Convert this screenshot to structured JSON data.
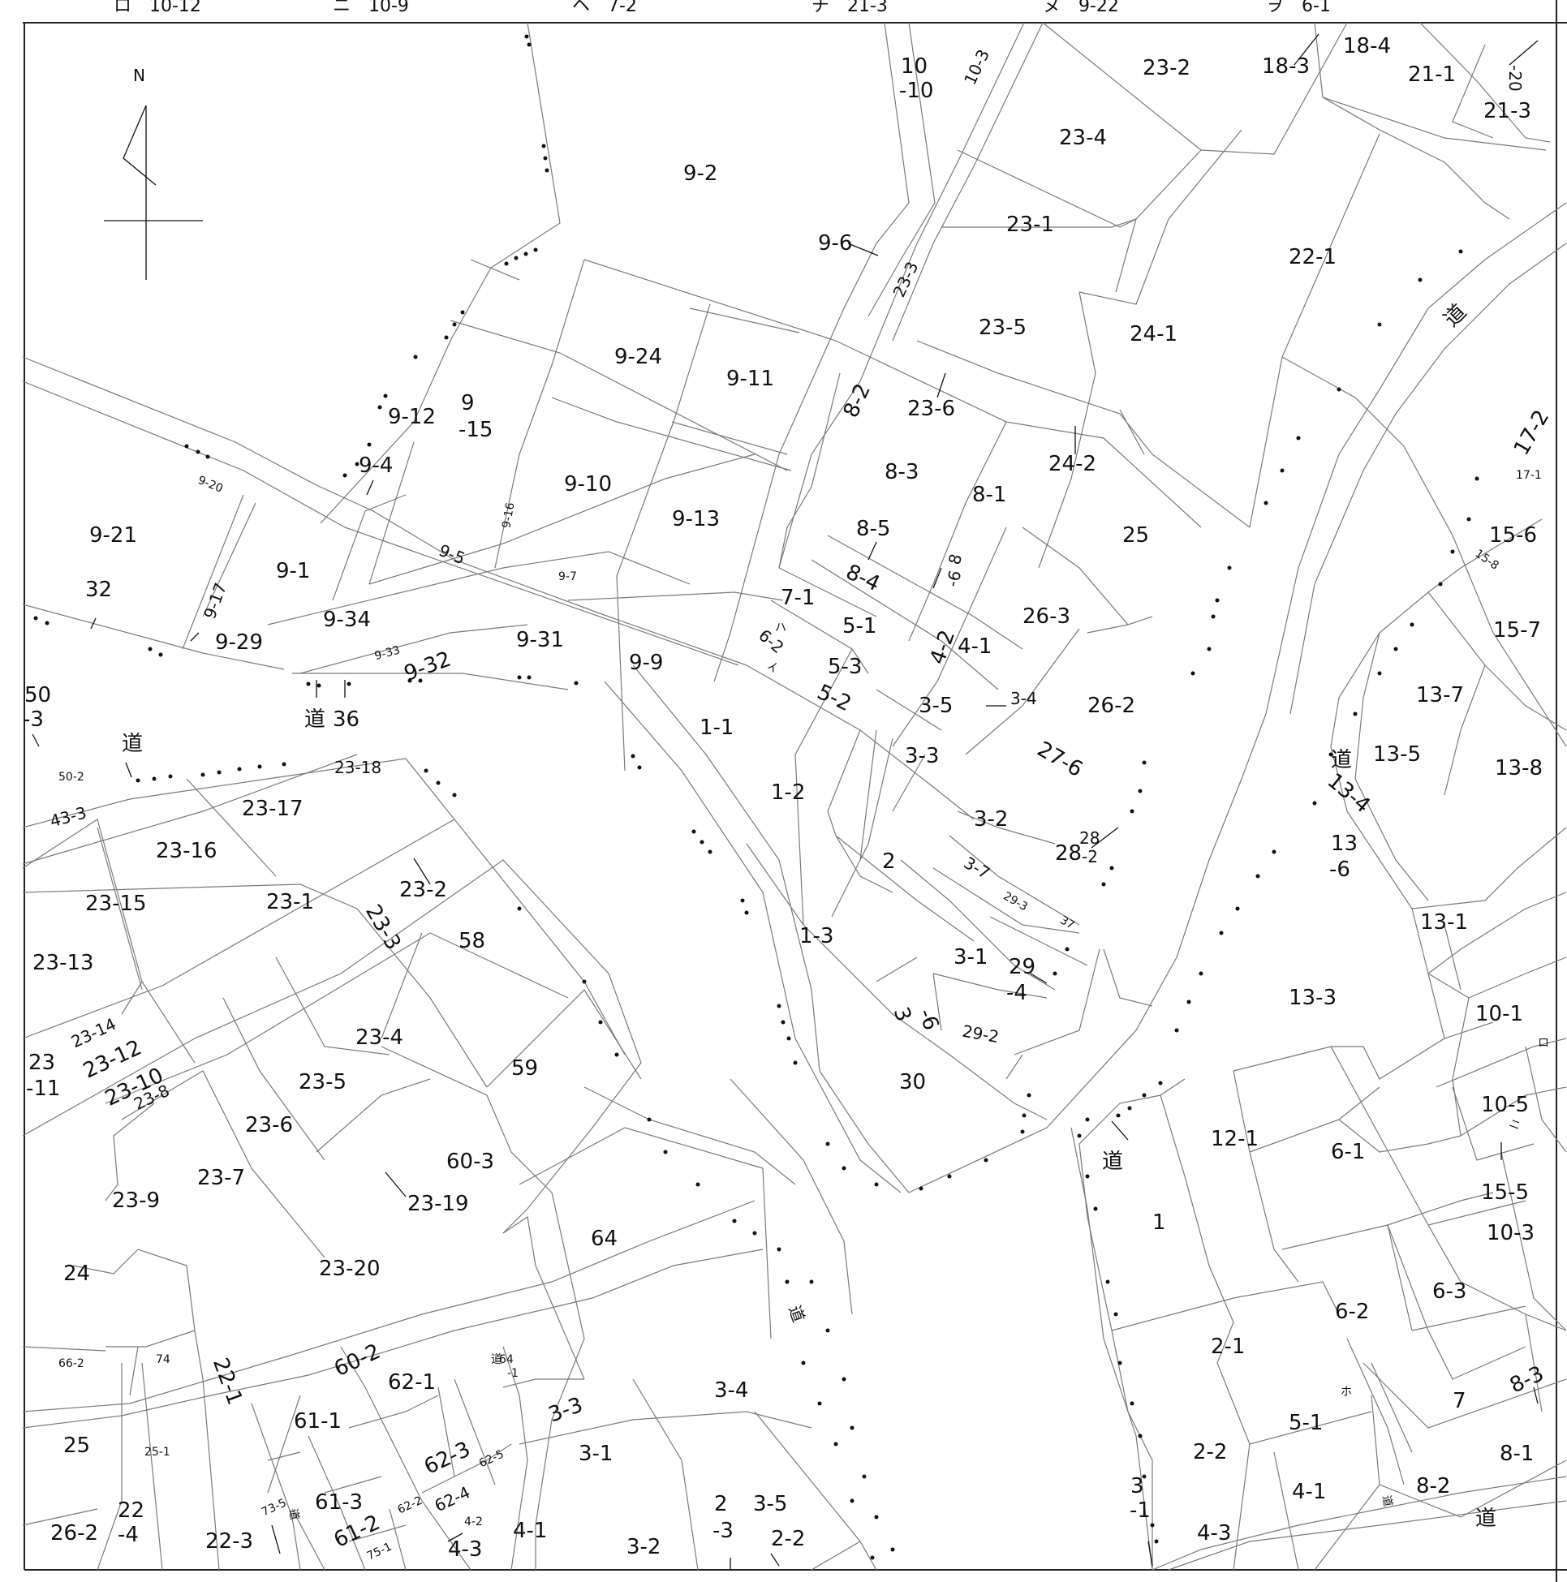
{
  "header": {
    "entries": [
      "ロ　10-12",
      "ニ　10-9",
      "ヘ　7-2",
      "チ　21-3",
      "ヌ　9-22",
      "ヲ　6-1"
    ]
  },
  "compass": {
    "label": "N"
  },
  "parcels": {
    "p9_2": "9-2",
    "p10_10a": "10",
    "p10_10b": "-10",
    "p10_3": "10-3",
    "p23_2n": "23-2",
    "p18_3": "18-3",
    "p18_4": "18-4",
    "p21_1": "21-1",
    "p20": "-20",
    "p21_3": "21-3",
    "p23_4n": "23-4",
    "p23_1n": "23-1",
    "p22_1n": "22-1",
    "p9_6": "9-6",
    "p23_3n": "23-3",
    "p23_5n": "23-5",
    "p24_1": "24-1",
    "p9_24": "9-24",
    "p9_11": "9-11",
    "p8_2": "8-2",
    "p23_6n": "23-6",
    "p9_12": "9-12",
    "p9_15a": "9",
    "p9_15b": "-15",
    "p9_4": "9-4",
    "p9_10": "9-10",
    "p9_16": "9-16",
    "p9_13": "9-13",
    "p8_3": "8-3",
    "p8_1": "8-1",
    "p24_2": "24-2",
    "p25n": "25",
    "p9_20": "9-20",
    "p9_21": "9-21",
    "p9_1": "9-1",
    "p9_5": "9-5",
    "p9_7": "9-7",
    "p8_5": "8-5",
    "p8_6a": "8",
    "p8_6b": "-6",
    "p17_2": "17-2",
    "p17_1": "17-1",
    "p15_6": "15-6",
    "p15_8": "15-8",
    "p32": "32",
    "p9_17": "9-17",
    "p9_34": "9-34",
    "p9_29": "9-29",
    "p8_4": "8-4",
    "p7_1": "7-1",
    "p5_1": "5-1",
    "p4_2": "4-2",
    "p4_1": "4-1",
    "p26_3": "26-3",
    "p15_7": "15-7",
    "p9_33": "9-33",
    "p9_32": "9-32",
    "p9_31": "9-31",
    "p9_9": "9-9",
    "p6_2": "6-2",
    "p5_3": "5-3",
    "p13_7": "13-7",
    "p50_3a": "50",
    "p50_3b": "-3",
    "p36": "36",
    "p1_1": "1-1",
    "p5_2": "5-2",
    "p3_5": "3-5",
    "p3_4": "3-4",
    "p26_2": "26-2",
    "p13_5": "13-5",
    "p13_8": "13-8",
    "p50_2": "50-2",
    "p23_18": "23-18",
    "p3_3": "3-3",
    "p27_6": "27-6",
    "p13_4": "13-4",
    "p43_3": "43-3",
    "p23_17": "23-17",
    "p1_2": "1-2",
    "p3_2": "3-2",
    "p23_16": "23-16",
    "p28": "28",
    "p28_2a": "28",
    "p28_2b": "-2",
    "p13_6a": "13",
    "p13_6b": "-6",
    "p2": "2",
    "p3_7": "3-7",
    "p29_3": "29-3",
    "p37": "37",
    "p23_15": "23-15",
    "p23_2s": "23-2",
    "p23_1s": "23-1",
    "p13_1": "13-1",
    "p23_3s": "23-3",
    "p58": "58",
    "p1_3": "1-3",
    "p3_1n": "3-1",
    "p23_13": "23-13",
    "p29_4a": "29",
    "p29_4b": "-4",
    "p13_3": "13-3",
    "p3_6a": "3",
    "p3_6b": "-6",
    "p29_2": "29-2",
    "p10_1": "10-1",
    "p23_14": "23-14",
    "p23_12": "23-12",
    "p23_4s": "23-4",
    "p23_11a": "23",
    "p23_11b": "-11",
    "p23_10": "23-10",
    "p59": "59",
    "p23_8": "23-8",
    "p23_5s": "23-5",
    "p30": "30",
    "p10_5": "10-5",
    "p12_1": "12-1",
    "p6_1": "6-1",
    "p23_6s": "23-6",
    "p60_3": "60-3",
    "p23_7": "23-7",
    "p23_9": "23-9",
    "p23_19": "23-19",
    "p15_5": "15-5",
    "p1": "1",
    "p64": "64",
    "p10_3s": "10-3",
    "p24": "24",
    "p23_20": "23-20",
    "p6_3": "6-3",
    "p6_2s": "6-2",
    "p60_2": "60-2",
    "p22_1s": "22-1",
    "p66_2": "66-2",
    "p74": "74",
    "p64_1a": "64",
    "p64_1b": "-1",
    "p62_1": "62-1",
    "p2_1": "2-1",
    "p3_3s": "3-3",
    "p3_4s": "3-4",
    "p8_3s": "8-3",
    "p7": "7",
    "p61_1": "61-1",
    "p25s": "25",
    "p25_1": "25-1",
    "p62_3": "62-3",
    "p3_1s": "3-1",
    "p62_5": "62-5",
    "p5_1s": "5-1",
    "p8_1s": "8-1",
    "p2_2": "2-2",
    "p62_2": "62-2",
    "p62_4": "62-4",
    "p61_3": "61-3",
    "p3_5s": "3-5",
    "p2_3a": "2",
    "p2_3b": "-3",
    "p8_2s": "8-2",
    "p22_4a": "22",
    "p22_4b": "-4",
    "p4_2s": "4-2",
    "p4_1s": "4-1",
    "p61_2": "61-2",
    "p3_2s": "3-2",
    "p2_2s": "2-2",
    "p3_1a": "3",
    "p3_1b": "-1",
    "p4_1e": "4-1",
    "p73_5": "73-5",
    "p26_2s": "26-2",
    "p22_3": "22-3",
    "p4_3s": "4-3",
    "p75_1": "75-1",
    "p4_3e": "4-3"
  },
  "roads": {
    "r1": "道",
    "r2": "道",
    "r3": "道",
    "r4": "道",
    "r5": "道",
    "r6": "道",
    "r7": "道",
    "r8": "道",
    "r9": "道",
    "r10": "道"
  },
  "kana_marks": {
    "k1": "ロ",
    "k2": "ニ",
    "k3": "ハ",
    "k4": "イ",
    "k5": "ホ"
  }
}
